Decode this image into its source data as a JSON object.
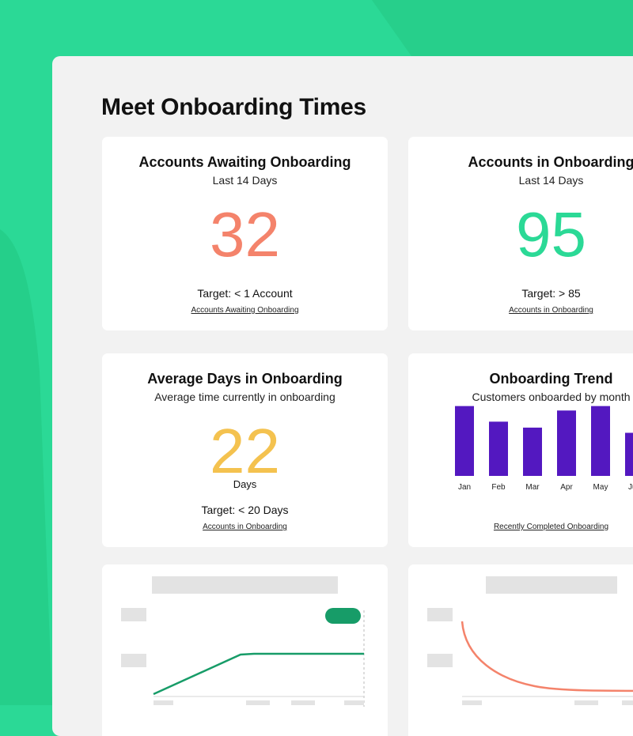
{
  "page_title": "Meet Onboarding Times",
  "colors": {
    "background": "#2bd996",
    "panel": "#f2f2f2",
    "metric_red": "#f4836b",
    "metric_green": "#2bd996",
    "metric_yellow": "#f4c24f",
    "bar": "#5318c0",
    "line_green": "#179c68",
    "line_orange": "#f4836b"
  },
  "cards": {
    "awaiting": {
      "title": "Accounts Awaiting Onboarding",
      "subtitle": "Last 14 Days",
      "value": "32",
      "target": "Target: < 1 Account",
      "link": "Accounts Awaiting Onboarding"
    },
    "in_onboarding": {
      "title": "Accounts in Onboarding",
      "subtitle": "Last 14 Days",
      "value": "95",
      "target": "Target: > 85",
      "link": "Accounts in Onboarding"
    },
    "average_days": {
      "title": "Average Days in Onboarding",
      "subtitle": "Average time currently in onboarding",
      "value": "22",
      "units": "Days",
      "target": "Target: < 20 Days",
      "link": "Accounts in Onboarding"
    },
    "trend": {
      "title": "Onboarding Trend",
      "subtitle": "Customers onboarded by month",
      "link": "Recently Completed Onboarding"
    }
  },
  "chart_data": [
    {
      "type": "bar",
      "title": "Onboarding Trend",
      "subtitle": "Customers onboarded by month",
      "categories": [
        "Jan",
        "Feb",
        "Mar",
        "Apr",
        "May",
        "Jun"
      ],
      "values": [
        94,
        73,
        65,
        88,
        94,
        58
      ],
      "ylim": [
        0,
        100
      ],
      "grid": false
    }
  ]
}
